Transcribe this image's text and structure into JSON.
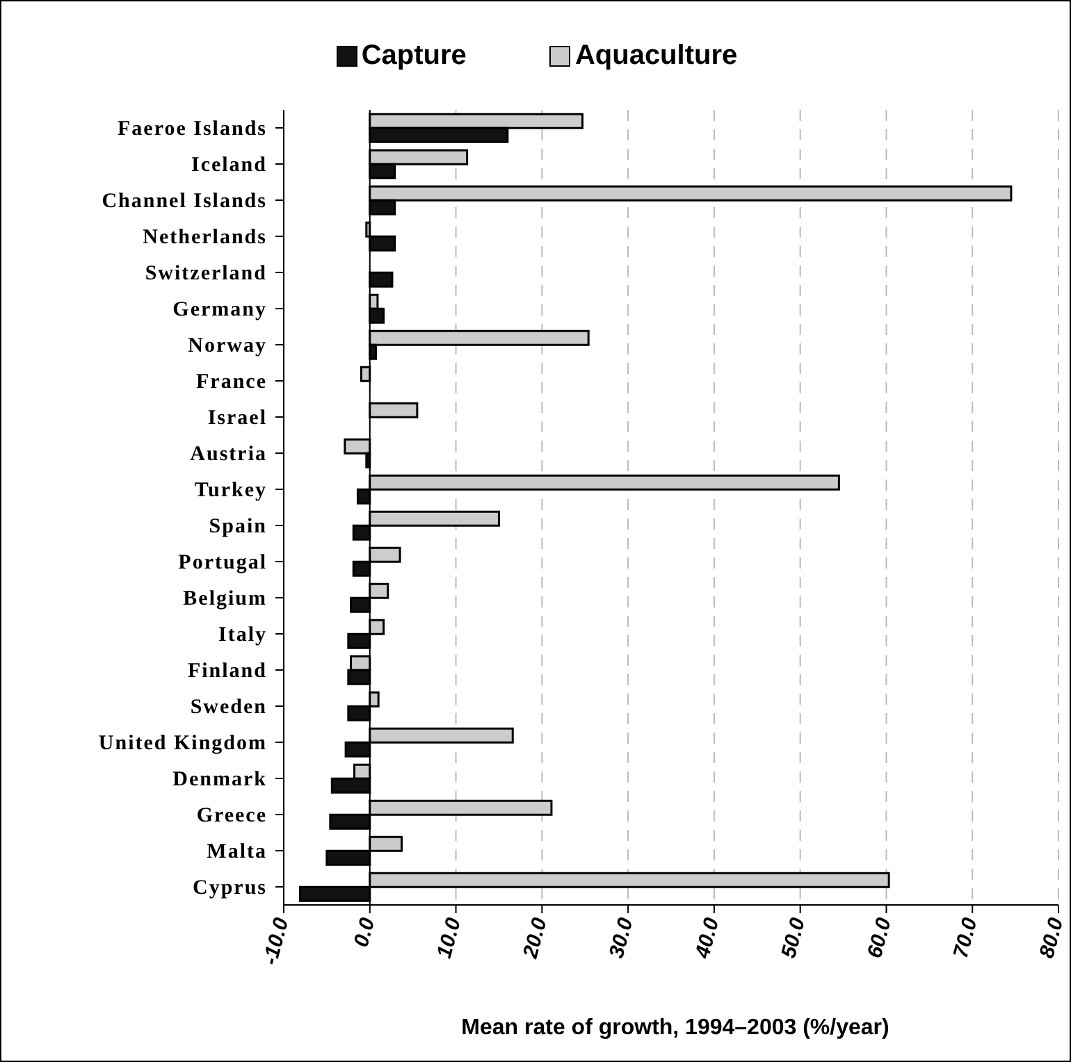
{
  "chart_data": {
    "type": "bar",
    "orientation": "horizontal",
    "xlabel": "Mean rate of growth, 1994–2003 (%/year)",
    "categories": [
      "Faeroe Islands",
      "Iceland",
      "Channel Islands",
      "Netherlands",
      "Switzerland",
      "Germany",
      "Norway",
      "France",
      "Israel",
      "Austria",
      "Turkey",
      "Spain",
      "Portugal",
      "Belgium",
      "Italy",
      "Finland",
      "Sweden",
      "United Kingdom",
      "Denmark",
      "Greece",
      "Malta",
      "Cyprus"
    ],
    "series": [
      {
        "name": "Capture",
        "color": "#111111",
        "values": [
          16.0,
          2.9,
          2.9,
          2.9,
          2.6,
          1.6,
          0.7,
          0,
          0,
          -0.4,
          -1.4,
          -1.9,
          -1.9,
          -2.2,
          -2.5,
          -2.5,
          -2.5,
          -2.8,
          -4.4,
          -4.6,
          -5.0,
          -8.1
        ]
      },
      {
        "name": "Aquaculture",
        "color": "#cccccc",
        "values": [
          24.7,
          11.3,
          74.5,
          -0.4,
          null,
          0.9,
          25.4,
          -1.0,
          5.5,
          -2.9,
          54.5,
          15.0,
          3.5,
          2.1,
          1.6,
          -2.2,
          1.0,
          16.6,
          -1.8,
          21.1,
          3.7,
          60.3
        ]
      }
    ],
    "xlim": [
      -10,
      80
    ],
    "xticks": [
      {
        "value": -10,
        "label": "-10.0"
      },
      {
        "value": 0,
        "label": "0.0"
      },
      {
        "value": 10,
        "label": "10.0"
      },
      {
        "value": 20,
        "label": "20.0"
      },
      {
        "value": 30,
        "label": "30.0"
      },
      {
        "value": 40,
        "label": "40.0"
      },
      {
        "value": 50,
        "label": "50.0"
      },
      {
        "value": 60,
        "label": "60.0"
      },
      {
        "value": 70,
        "label": "70.0"
      },
      {
        "value": 80,
        "label": "80.0"
      }
    ],
    "grid": "x",
    "legend": "top"
  }
}
